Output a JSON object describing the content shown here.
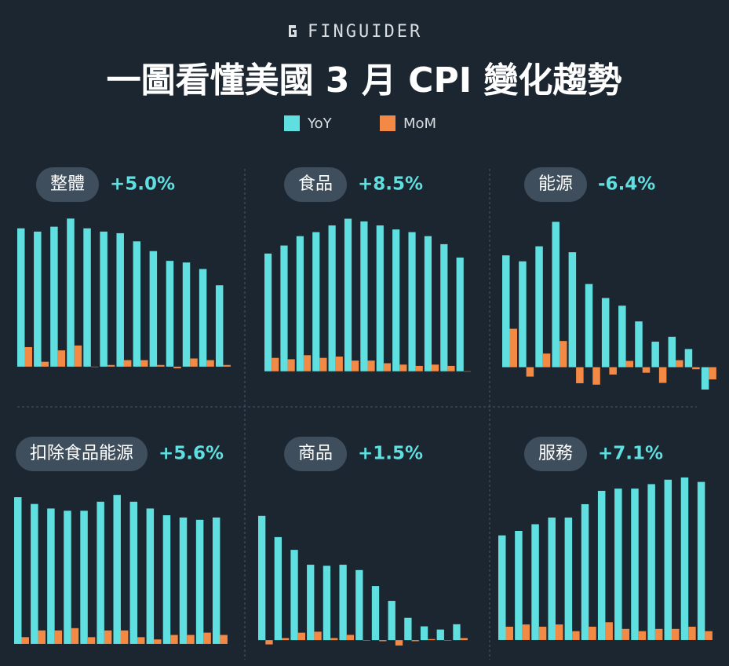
{
  "brand": "FINGUIDER",
  "title": "一圖看懂美國 3 月 CPI 變化趨勢",
  "chart_data": [
    {
      "type": "bar",
      "title": "整體",
      "annotation": "+5.0%",
      "ylim": [
        -1.6,
        9.5
      ],
      "series": [
        {
          "name": "YoY",
          "color": "#5fdfe0",
          "values": [
            8.5,
            8.3,
            8.6,
            9.1,
            8.5,
            8.3,
            8.2,
            7.7,
            7.1,
            6.5,
            6.4,
            6.0,
            5.0
          ]
        },
        {
          "name": "MoM",
          "color": "#f28a45",
          "values": [
            1.2,
            0.3,
            1.0,
            1.3,
            0.0,
            0.1,
            0.4,
            0.4,
            0.1,
            -0.1,
            0.5,
            0.4,
            0.1
          ]
        }
      ]
    },
    {
      "type": "bar",
      "title": "食品",
      "annotation": "+8.5%",
      "ylim": [
        -1.6,
        11.9
      ],
      "series": [
        {
          "color": "#5fdfe0",
          "values": [
            8.8,
            9.4,
            10.1,
            10.4,
            10.9,
            11.4,
            11.2,
            10.9,
            10.6,
            10.4,
            10.1,
            9.5,
            8.5
          ]
        },
        {
          "color": "#f28a45",
          "values": [
            1.0,
            0.9,
            1.2,
            1.0,
            1.1,
            0.8,
            0.8,
            0.6,
            0.5,
            0.4,
            0.5,
            0.4,
            0.0
          ]
        }
      ]
    },
    {
      "type": "bar",
      "title": "能源",
      "annotation": "-6.4%",
      "ylim": [
        -7.3,
        44.4
      ],
      "series": [
        {
          "color": "#5fdfe0",
          "values": [
            32.0,
            30.3,
            34.6,
            41.6,
            32.9,
            23.8,
            19.8,
            17.6,
            13.1,
            7.3,
            8.7,
            5.2,
            -6.4
          ]
        },
        {
          "color": "#f28a45",
          "values": [
            11.0,
            -2.7,
            3.9,
            7.5,
            -4.6,
            -5.0,
            -2.1,
            1.8,
            -1.6,
            -4.5,
            2.0,
            -0.6,
            -3.5
          ]
        }
      ]
    },
    {
      "type": "bar",
      "title": "扣除食品能源",
      "annotation": "+5.6%",
      "ylim": [
        -0.35,
        7.65
      ],
      "series": [
        {
          "color": "#5fdfe0",
          "values": [
            6.5,
            6.2,
            6.0,
            5.9,
            5.9,
            6.3,
            6.6,
            6.3,
            6.0,
            5.7,
            5.6,
            5.5,
            5.6
          ]
        },
        {
          "color": "#f28a45",
          "values": [
            0.3,
            0.6,
            0.6,
            0.7,
            0.3,
            0.6,
            0.6,
            0.3,
            0.2,
            0.4,
            0.4,
            0.5,
            0.4
          ]
        }
      ]
    },
    {
      "type": "bar",
      "title": "商品",
      "annotation": "+1.5%",
      "ylim": [
        -1.1,
        15.9
      ],
      "series": [
        {
          "color": "#5fdfe0",
          "values": [
            11.7,
            9.7,
            8.5,
            7.1,
            7.0,
            7.1,
            6.6,
            5.1,
            3.7,
            2.1,
            1.3,
            1.0,
            1.5
          ]
        },
        {
          "color": "#f28a45",
          "values": [
            -0.4,
            0.2,
            0.7,
            0.8,
            0.2,
            0.5,
            0.0,
            -0.1,
            -0.5,
            -0.1,
            0.1,
            0.0,
            0.2
          ]
        }
      ]
    },
    {
      "type": "bar",
      "title": "服務",
      "annotation": "+7.1%",
      "ylim": [
        -0.53,
        7.58
      ],
      "series": [
        {
          "color": "#5fdfe0",
          "values": [
            4.7,
            4.9,
            5.2,
            5.5,
            5.5,
            6.1,
            6.7,
            6.8,
            6.8,
            7.0,
            7.2,
            7.3,
            7.1
          ]
        },
        {
          "color": "#f28a45",
          "values": [
            0.6,
            0.7,
            0.6,
            0.7,
            0.4,
            0.6,
            0.8,
            0.5,
            0.4,
            0.5,
            0.5,
            0.6,
            0.4
          ]
        }
      ]
    }
  ]
}
